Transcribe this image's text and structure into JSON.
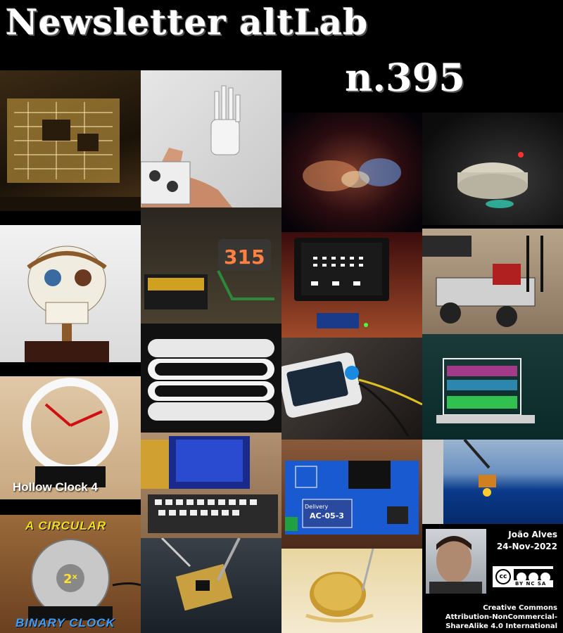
{
  "header": {
    "title": "Newsletter altLab",
    "issue": "n.395"
  },
  "tiles": [
    {
      "name": "tile-circuit-board",
      "subject": "circuit"
    },
    {
      "name": "tile-robotic-arm",
      "subject": "arm"
    },
    {
      "name": "tile-nebula",
      "subject": "nebula"
    },
    {
      "name": "tile-round-robot",
      "subject": "robot"
    },
    {
      "name": "tile-animatronic-skull",
      "subject": "skull"
    },
    {
      "name": "tile-nixie-clock",
      "subject": "nixie"
    },
    {
      "name": "tile-space-invaders-display",
      "subject": "invaders"
    },
    {
      "name": "tile-robot-car",
      "subject": "car"
    },
    {
      "name": "tile-speaker-rings",
      "subject": "rings"
    },
    {
      "name": "tile-touch-device",
      "subject": "device"
    },
    {
      "name": "tile-stacked-enclosure",
      "subject": "stack"
    },
    {
      "name": "tile-hollow-clock",
      "subject": "hollow-clock"
    },
    {
      "name": "tile-mini-computer",
      "subject": "computer"
    },
    {
      "name": "tile-relay-board",
      "subject": "relay"
    },
    {
      "name": "tile-ocean-crane",
      "subject": "ocean"
    },
    {
      "name": "tile-binary-clock",
      "subject": "binary"
    },
    {
      "name": "tile-soldering",
      "subject": "solder"
    },
    {
      "name": "tile-coin-cell",
      "subject": "coin"
    }
  ],
  "captions": {
    "hollow_clock": "Hollow Clock 4",
    "binary_top": "A CIRCULAR",
    "binary_bottom": "BINARY CLOCK",
    "nixie_digits": "315",
    "binary_center": "2ˣ",
    "board_label": "AC-05-3",
    "board_brand": "Delivery"
  },
  "author": {
    "name": "João Alves",
    "date": "24-Nov-2022"
  },
  "license": {
    "line1": "Creative Commons",
    "line2": "Attribution-NonCommercial-",
    "line3": "ShareAlike 4.0 International",
    "badge_cc": "cc",
    "badge_text": "BY NC SA"
  }
}
